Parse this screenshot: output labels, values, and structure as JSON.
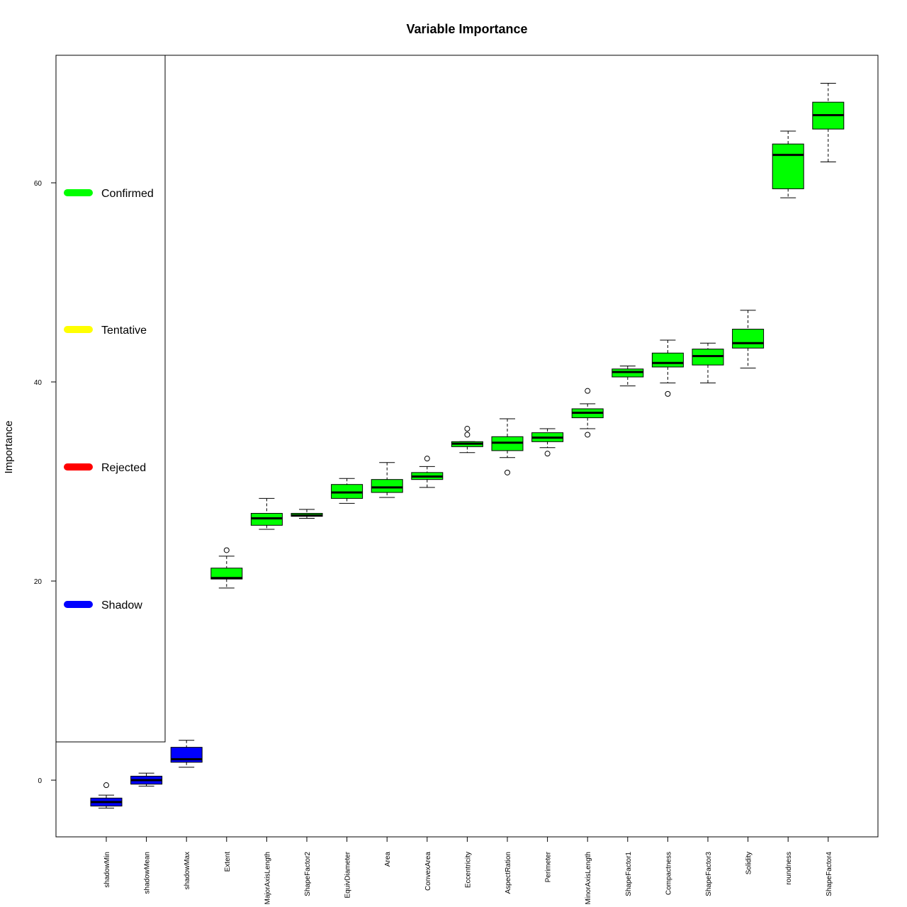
{
  "chart_data": {
    "type": "box",
    "title": "Variable Importance",
    "xlabel": "",
    "ylabel": "Importance",
    "ylim": [
      -5.8,
      72.7
    ],
    "yticks": [
      0,
      20,
      40,
      60
    ],
    "grid": false,
    "legend_placement": "left",
    "legend": [
      {
        "label": "Confirmed",
        "color": "#00ff00"
      },
      {
        "label": "Tentative",
        "color": "#ffff00"
      },
      {
        "label": "Rejected",
        "color": "#ff0000"
      },
      {
        "label": "Shadow",
        "color": "#0000ff"
      }
    ],
    "categories": [
      "shadowMin",
      "shadowMean",
      "shadowMax",
      "Extent",
      "MajorAxisLength",
      "ShapeFactor2",
      "EquivDiameter",
      "Area",
      "ConvexArea",
      "Eccentricity",
      "AspectRation",
      "Perimeter",
      "MinorAxisLength",
      "ShapeFactor1",
      "Compactness",
      "ShapeFactor3",
      "Solidity",
      "roundness",
      "ShapeFactor4"
    ],
    "boxes": [
      {
        "name": "shadowMin",
        "status": "Shadow",
        "min": -2.8,
        "q1": -2.6,
        "median": -2.2,
        "q3": -1.8,
        "max": -1.5,
        "outliers": [
          -0.5
        ]
      },
      {
        "name": "shadowMean",
        "status": "Shadow",
        "min": -0.6,
        "q1": -0.4,
        "median": 0.0,
        "q3": 0.4,
        "max": 0.7,
        "outliers": []
      },
      {
        "name": "shadowMax",
        "status": "Shadow",
        "min": 1.3,
        "q1": 1.8,
        "median": 2.1,
        "q3": 3.3,
        "max": 4.0,
        "outliers": []
      },
      {
        "name": "Extent",
        "status": "Confirmed",
        "min": 19.3,
        "q1": 20.2,
        "median": 20.3,
        "q3": 21.3,
        "max": 22.5,
        "outliers": [
          23.1
        ]
      },
      {
        "name": "MajorAxisLength",
        "status": "Confirmed",
        "min": 25.2,
        "q1": 25.6,
        "median": 26.3,
        "q3": 26.8,
        "max": 28.3,
        "outliers": []
      },
      {
        "name": "ShapeFactor2",
        "status": "Confirmed",
        "min": 26.3,
        "q1": 26.5,
        "median": 26.6,
        "q3": 26.8,
        "max": 27.2,
        "outliers": []
      },
      {
        "name": "EquivDiameter",
        "status": "Confirmed",
        "min": 27.8,
        "q1": 28.3,
        "median": 28.9,
        "q3": 29.7,
        "max": 30.3,
        "outliers": []
      },
      {
        "name": "Area",
        "status": "Confirmed",
        "min": 28.4,
        "q1": 28.9,
        "median": 29.4,
        "q3": 30.2,
        "max": 31.9,
        "outliers": []
      },
      {
        "name": "ConvexArea",
        "status": "Confirmed",
        "min": 29.4,
        "q1": 30.2,
        "median": 30.5,
        "q3": 30.9,
        "max": 31.5,
        "outliers": [
          32.3
        ]
      },
      {
        "name": "Eccentricity",
        "status": "Confirmed",
        "min": 32.9,
        "q1": 33.5,
        "median": 33.8,
        "q3": 34.0,
        "max": 34.0,
        "outliers": [
          34.7,
          35.3
        ]
      },
      {
        "name": "AspectRation",
        "status": "Confirmed",
        "min": 32.4,
        "q1": 33.1,
        "median": 33.9,
        "q3": 34.5,
        "max": 36.3,
        "outliers": [
          30.9
        ]
      },
      {
        "name": "Perimeter",
        "status": "Confirmed",
        "min": 33.4,
        "q1": 34.0,
        "median": 34.4,
        "q3": 34.9,
        "max": 35.3,
        "outliers": [
          32.8
        ]
      },
      {
        "name": "MinorAxisLength",
        "status": "Confirmed",
        "min": 35.3,
        "q1": 36.4,
        "median": 36.9,
        "q3": 37.3,
        "max": 37.8,
        "outliers": [
          39.1,
          34.7
        ]
      },
      {
        "name": "ShapeFactor1",
        "status": "Confirmed",
        "min": 39.6,
        "q1": 40.5,
        "median": 41.0,
        "q3": 41.3,
        "max": 41.6,
        "outliers": []
      },
      {
        "name": "Compactness",
        "status": "Confirmed",
        "min": 39.9,
        "q1": 41.5,
        "median": 41.9,
        "q3": 42.9,
        "max": 44.2,
        "outliers": [
          38.8
        ]
      },
      {
        "name": "ShapeFactor3",
        "status": "Confirmed",
        "min": 39.9,
        "q1": 41.7,
        "median": 42.6,
        "q3": 43.3,
        "max": 43.9,
        "outliers": []
      },
      {
        "name": "Solidity",
        "status": "Confirmed",
        "min": 41.4,
        "q1": 43.4,
        "median": 43.9,
        "q3": 45.3,
        "max": 47.2,
        "outliers": []
      },
      {
        "name": "roundness",
        "status": "Confirmed",
        "min": 58.5,
        "q1": 59.4,
        "median": 62.8,
        "q3": 63.9,
        "max": 65.2,
        "outliers": []
      },
      {
        "name": "ShapeFactor4",
        "status": "Confirmed",
        "min": 62.1,
        "q1": 65.4,
        "median": 66.8,
        "q3": 68.1,
        "max": 70.0,
        "outliers": []
      }
    ]
  }
}
